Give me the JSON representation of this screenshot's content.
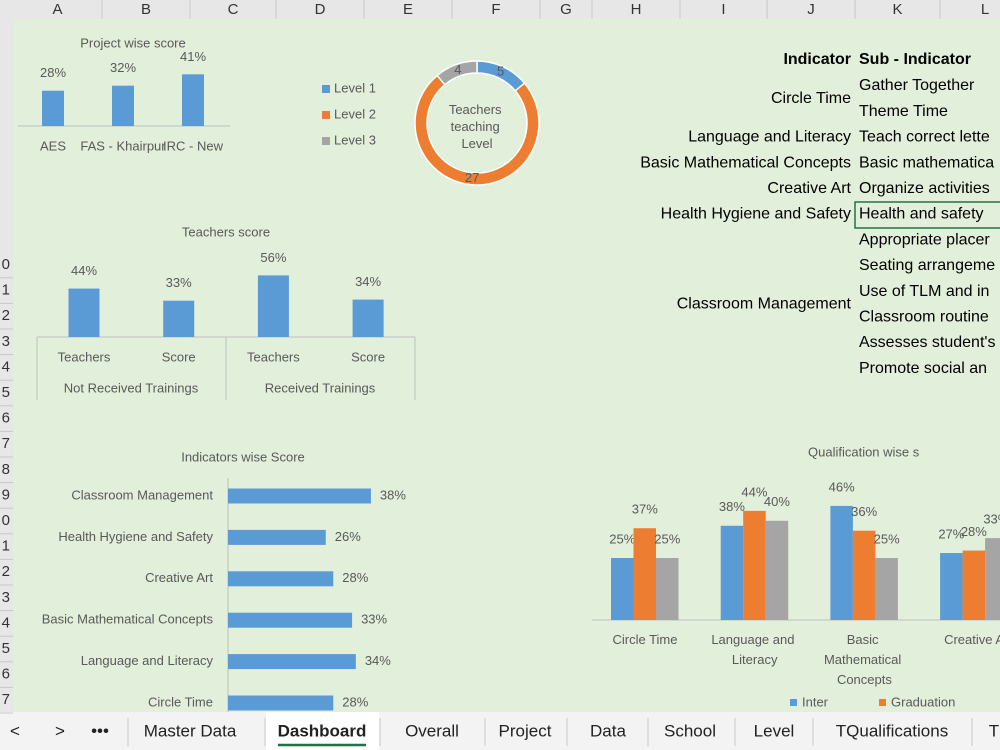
{
  "columns": [
    "A",
    "B",
    "C",
    "D",
    "E",
    "F",
    "G",
    "H",
    "I",
    "J",
    "K",
    "L"
  ],
  "row_numbers": [
    "0",
    "1",
    "2",
    "3",
    "4",
    "5",
    "6",
    "7",
    "8",
    "9",
    "0",
    "1",
    "2",
    "3",
    "4",
    "5",
    "6",
    "7"
  ],
  "chart_data": [
    {
      "type": "bar",
      "title": "Project wise score",
      "categories": [
        "AES",
        "FAS - Khairpur",
        "IRC - New"
      ],
      "values": [
        28,
        32,
        41
      ],
      "value_labels": [
        "28%",
        "32%",
        "41%"
      ],
      "color": "#5b9bd5"
    },
    {
      "type": "pie",
      "title": "Teachers teaching Level",
      "categories": [
        "Level 1",
        "Level 2",
        "Level 3"
      ],
      "values": [
        5,
        27,
        4
      ],
      "colors": [
        "#5b9bd5",
        "#ed7d31",
        "#a5a5a5"
      ],
      "donut": true,
      "legend": "left"
    },
    {
      "type": "bar",
      "title": "Teachers score",
      "groups": [
        "Not Received Trainings",
        "Received Trainings"
      ],
      "categories": [
        "Teachers",
        "Score",
        "Teachers",
        "Score"
      ],
      "values": [
        44,
        33,
        56,
        34
      ],
      "value_labels": [
        "44%",
        "33%",
        "56%",
        "34%"
      ],
      "color": "#5b9bd5"
    },
    {
      "type": "hbar",
      "title": "Indicators wise Score",
      "categories": [
        "Classroom Management",
        "Health Hygiene and Safety",
        "Creative Art",
        "Basic Mathematical Concepts",
        "Language and Literacy",
        "Circle Time"
      ],
      "values": [
        38,
        26,
        28,
        33,
        34,
        28
      ],
      "value_labels": [
        "38%",
        "26%",
        "28%",
        "33%",
        "34%",
        "28%"
      ],
      "color": "#5b9bd5"
    },
    {
      "type": "grouped-bar",
      "title": "Qualification wise s",
      "categories": [
        "Circle Time",
        "Language and Literacy",
        "Basic Mathematical Concepts",
        "Creative A"
      ],
      "series": [
        {
          "name": "Inter",
          "color": "#5b9bd5",
          "values": [
            25,
            38,
            46,
            27
          ],
          "value_labels": [
            "25%",
            "38%",
            "46%",
            "27%"
          ]
        },
        {
          "name": "Graduation",
          "color": "#ed7d31",
          "values": [
            37,
            44,
            36,
            28
          ],
          "value_labels": [
            "37%",
            "44%",
            "36%",
            "28%"
          ]
        },
        {
          "color": "#a5a5a5",
          "values": [
            25,
            40,
            25,
            33
          ],
          "value_labels": [
            "25%",
            "40%",
            "25%",
            "33%"
          ]
        }
      ],
      "legend": "bottom"
    }
  ],
  "indicator_table": {
    "header": [
      "Indicator",
      "Sub - Indicator"
    ],
    "rows": [
      {
        "indicator": "Circle Time",
        "sub_indicators": [
          "Gather Together",
          "Theme Time"
        ]
      },
      {
        "indicator": "Language and Literacy",
        "sub_indicators": [
          "Teach correct lette"
        ]
      },
      {
        "indicator": "Basic Mathematical Concepts",
        "sub_indicators": [
          "Basic mathematica"
        ]
      },
      {
        "indicator": "Creative Art",
        "sub_indicators": [
          "Organize activities"
        ]
      },
      {
        "indicator": "Health Hygiene and Safety",
        "sub_indicators": [
          "Health and safety"
        ]
      },
      {
        "indicator": "Classroom Management",
        "sub_indicators": [
          "Appropriate placer",
          "Seating arrangeme",
          "Use of TLM and in",
          "Classroom routine",
          "Assesses student's",
          "Promote social an"
        ]
      }
    ]
  },
  "sheet_tabs": {
    "nav": [
      "<",
      ">",
      "•••"
    ],
    "tabs": [
      "Master Data",
      "Dashboard",
      "Overall",
      "Project",
      "Data",
      "School",
      "Level",
      "TQualifications",
      "T"
    ],
    "active": 1
  }
}
